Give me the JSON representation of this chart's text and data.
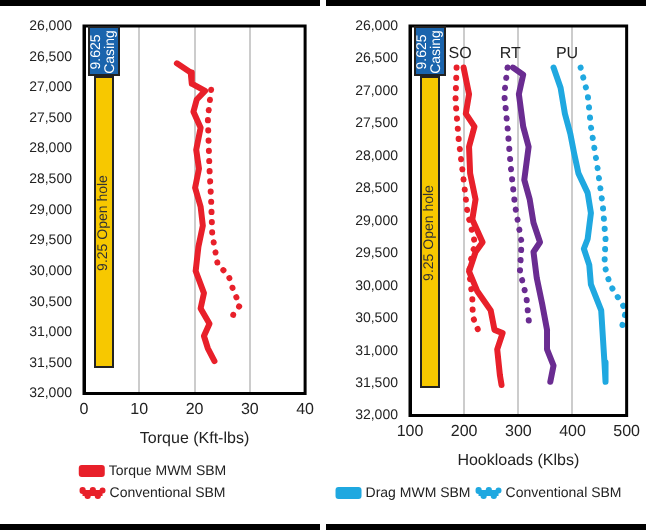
{
  "chart_data": [
    {
      "type": "line",
      "xlabel": "Torque (Kft-lbs)",
      "xlim": [
        0,
        40
      ],
      "xticks": [
        0,
        10,
        20,
        30,
        40
      ],
      "ylim": [
        32000,
        26000
      ],
      "yticks": [
        {
          "value": 26000,
          "label": "26,000"
        },
        {
          "value": 26500,
          "label": "26,500"
        },
        {
          "value": 27000,
          "label": "27,000"
        },
        {
          "value": 27500,
          "label": "27,500"
        },
        {
          "value": 28000,
          "label": "28,000"
        },
        {
          "value": 28500,
          "label": "28,500"
        },
        {
          "value": 29000,
          "label": "29,000"
        },
        {
          "value": 29500,
          "label": "29,500"
        },
        {
          "value": 30000,
          "label": "30,000"
        },
        {
          "value": 30500,
          "label": "30,500"
        },
        {
          "value": 31000,
          "label": "31,000"
        },
        {
          "value": 31500,
          "label": "31,500"
        },
        {
          "value": 32000,
          "label": "32,000"
        }
      ],
      "grid": "x",
      "legend": "bottom",
      "annotations": [
        "9.625 Casing",
        "9.25 Open hole"
      ],
      "series": [
        {
          "name": "Torque MWM SBM",
          "color": "#e8202a",
          "line_style": "solid",
          "x": [
            16.8,
            19.3,
            19.5,
            21.9,
            20.4,
            19.8,
            21.1,
            20.3,
            20.8,
            20.1,
            21.1,
            21.5,
            20.7,
            20.2,
            21.7,
            21.1,
            22.7,
            21.7,
            22.4,
            23.6
          ],
          "values": [
            26610,
            26760,
            26940,
            27060,
            27200,
            27400,
            27660,
            28020,
            28330,
            28640,
            28950,
            29260,
            29600,
            30000,
            30360,
            30610,
            30860,
            31060,
            31260,
            31470
          ]
        },
        {
          "name": "Conventional SBM",
          "color": "#e8202a",
          "line_style": "dotted",
          "x": [
            23.0,
            22.4,
            22.7,
            23.0,
            23.2,
            23.6,
            24.2,
            26.1,
            27.0,
            28.2,
            27.0,
            26.7
          ],
          "values": [
            27040,
            27500,
            28330,
            28840,
            29400,
            29600,
            29900,
            30060,
            30310,
            30560,
            30710,
            30860
          ]
        }
      ]
    },
    {
      "type": "line",
      "xlabel": "Hookloads (Klbs)",
      "xlim": [
        100,
        500
      ],
      "xticks": [
        100,
        200,
        300,
        400,
        500
      ],
      "ylim": [
        32000,
        26000
      ],
      "yticks": [
        {
          "value": 26000,
          "label": "26,000"
        },
        {
          "value": 26500,
          "label": "26,500"
        },
        {
          "value": 27000,
          "label": "27,000"
        },
        {
          "value": 27500,
          "label": "27,500"
        },
        {
          "value": 28000,
          "label": "28,000"
        },
        {
          "value": 28500,
          "label": "28,500"
        },
        {
          "value": 29000,
          "label": "29,000"
        },
        {
          "value": 29500,
          "label": "29,500"
        },
        {
          "value": 30000,
          "label": "30,000"
        },
        {
          "value": 30500,
          "label": "30,500"
        },
        {
          "value": 31000,
          "label": "31,000"
        },
        {
          "value": 31500,
          "label": "31,500"
        },
        {
          "value": 32000,
          "label": "32,000"
        }
      ],
      "grid": "x",
      "legend": "bottom",
      "annotations": [
        "9.625 Casing",
        "9.25 Open hole",
        "SO",
        "RT",
        "PU"
      ],
      "series": [
        {
          "color": "#e8202a",
          "line_style": "solid",
          "x": [
            199,
            209,
            203,
            219,
            209,
            211,
            221,
            215,
            234,
            221,
            209,
            224,
            249,
            256,
            271,
            261,
            266,
            269
          ],
          "values": [
            26640,
            27050,
            27350,
            27550,
            27860,
            28270,
            28670,
            28980,
            29330,
            29480,
            29780,
            30080,
            30380,
            30680,
            30730,
            30980,
            31380,
            31530
          ]
        },
        {
          "color": "#e8202a",
          "line_style": "dotted",
          "x": [
            186,
            184,
            190,
            199,
            206,
            221,
            215,
            209,
            215,
            216,
            228
          ],
          "values": [
            26640,
            27150,
            27760,
            28370,
            28870,
            29380,
            29480,
            29780,
            30180,
            30480,
            30730
          ]
        },
        {
          "color": "#6a2c91",
          "line_style": "solid",
          "x": [
            290,
            309,
            301,
            309,
            319,
            311,
            321,
            328,
            340,
            328,
            334,
            344,
            353,
            353,
            365,
            359
          ],
          "values": [
            26640,
            26750,
            27050,
            27550,
            27860,
            28370,
            28670,
            29030,
            29330,
            29480,
            29880,
            30280,
            30680,
            30980,
            31230,
            31480
          ]
        },
        {
          "color": "#6a2c91",
          "line_style": "dotted",
          "x": [
            280,
            274,
            280,
            286,
            294,
            306,
            303,
            315,
            321
          ],
          "values": [
            26640,
            27050,
            27550,
            28170,
            28770,
            29330,
            29780,
            30180,
            30680
          ]
        },
        {
          "name": "Drag MWM SBM",
          "color": "#1fa8e0",
          "line_style": "solid",
          "x": [
            365,
            378,
            386,
            396,
            403,
            411,
            428,
            434,
            428,
            421,
            431,
            434,
            453,
            456,
            459,
            461
          ],
          "values": [
            26640,
            26950,
            27350,
            27660,
            27960,
            28270,
            28570,
            28880,
            29280,
            29430,
            29680,
            29980,
            30380,
            30780,
            31180,
            31480
          ]
        },
        {
          "name": "Conventional SBM",
          "color": "#1fa8e0",
          "line_style": "dotted",
          "x": [
            415,
            428,
            434,
            446,
            456,
            461,
            459,
            469,
            499,
            490
          ],
          "values": [
            26640,
            27050,
            27550,
            28170,
            28770,
            29280,
            29680,
            29980,
            30380,
            30680
          ]
        }
      ]
    }
  ]
}
